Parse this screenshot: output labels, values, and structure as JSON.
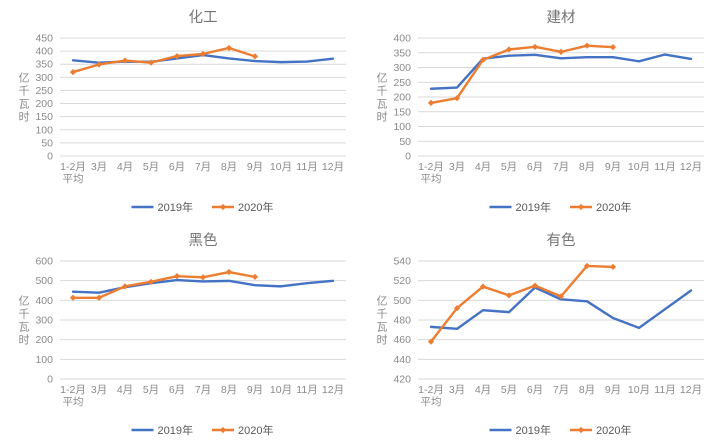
{
  "figure": {
    "background": "#ffffff",
    "accent_blue": "#4472C4",
    "accent_orange": "#ED7D31",
    "grid_color": "#D9D9D9",
    "title_color": "#757575",
    "axis_text_color": "#8A8A8A",
    "legend_text_color": "#595959"
  },
  "chart_data": [
    {
      "type": "line",
      "title": "化工",
      "ylabel": "亿千瓦时",
      "categories": [
        "1-2月\n平均",
        "3月",
        "4月",
        "5月",
        "6月",
        "7月",
        "8月",
        "9月",
        "10月",
        "11月",
        "12月"
      ],
      "y_ticks": [
        0,
        50,
        100,
        150,
        200,
        250,
        300,
        350,
        400,
        450
      ],
      "ylim": [
        0,
        450
      ],
      "grid": true,
      "legend_position": "bottom",
      "series": [
        {
          "name": "2019年",
          "color": "#4472C4",
          "marker": false,
          "values": [
            365,
            356,
            360,
            359,
            372,
            385,
            372,
            362,
            358,
            360,
            371
          ]
        },
        {
          "name": "2020年",
          "color": "#ED7D31",
          "marker": true,
          "values": [
            320,
            349,
            364,
            356,
            381,
            389,
            412,
            380
          ]
        }
      ]
    },
    {
      "type": "line",
      "title": "建材",
      "ylabel": "亿千瓦时",
      "categories": [
        "1-2月\n平均",
        "3月",
        "4月",
        "5月",
        "6月",
        "7月",
        "8月",
        "9月",
        "10月",
        "11月",
        "12月"
      ],
      "y_ticks": [
        0,
        50,
        100,
        150,
        200,
        250,
        300,
        350,
        400
      ],
      "ylim": [
        0,
        400
      ],
      "grid": true,
      "legend_position": "bottom",
      "series": [
        {
          "name": "2019年",
          "color": "#4472C4",
          "marker": false,
          "values": [
            228,
            232,
            330,
            340,
            343,
            331,
            335,
            335,
            321,
            344,
            329
          ]
        },
        {
          "name": "2020年",
          "color": "#ED7D31",
          "marker": true,
          "values": [
            180,
            196,
            326,
            361,
            370,
            353,
            374,
            369
          ]
        }
      ]
    },
    {
      "type": "line",
      "title": "黑色",
      "ylabel": "亿千瓦时",
      "categories": [
        "1-2月\n平均",
        "3月",
        "4月",
        "5月",
        "6月",
        "7月",
        "8月",
        "9月",
        "10月",
        "11月",
        "12月"
      ],
      "y_ticks": [
        0,
        100,
        200,
        300,
        400,
        500,
        600
      ],
      "ylim": [
        0,
        600
      ],
      "grid": true,
      "legend_position": "bottom",
      "series": [
        {
          "name": "2019年",
          "color": "#4472C4",
          "marker": false,
          "values": [
            444,
            439,
            467,
            487,
            503,
            496,
            499,
            477,
            471,
            487,
            499
          ]
        },
        {
          "name": "2020年",
          "color": "#ED7D31",
          "marker": true,
          "values": [
            413,
            413,
            471,
            494,
            523,
            517,
            544,
            519
          ]
        }
      ]
    },
    {
      "type": "line",
      "title": "有色",
      "ylabel": "亿千瓦时",
      "categories": [
        "1-2月\n平均",
        "3月",
        "4月",
        "5月",
        "6月",
        "7月",
        "8月",
        "9月",
        "10月",
        "11月",
        "12月"
      ],
      "y_ticks": [
        420,
        440,
        460,
        480,
        500,
        520,
        540
      ],
      "ylim": [
        420,
        540
      ],
      "grid": true,
      "legend_position": "bottom",
      "series": [
        {
          "name": "2019年",
          "color": "#4472C4",
          "marker": false,
          "values": [
            473,
            471,
            490,
            488,
            513,
            501,
            499,
            482,
            472,
            491,
            510
          ]
        },
        {
          "name": "2020年",
          "color": "#ED7D31",
          "marker": true,
          "values": [
            458,
            492,
            514,
            505,
            515,
            504,
            535,
            534
          ]
        }
      ]
    }
  ]
}
